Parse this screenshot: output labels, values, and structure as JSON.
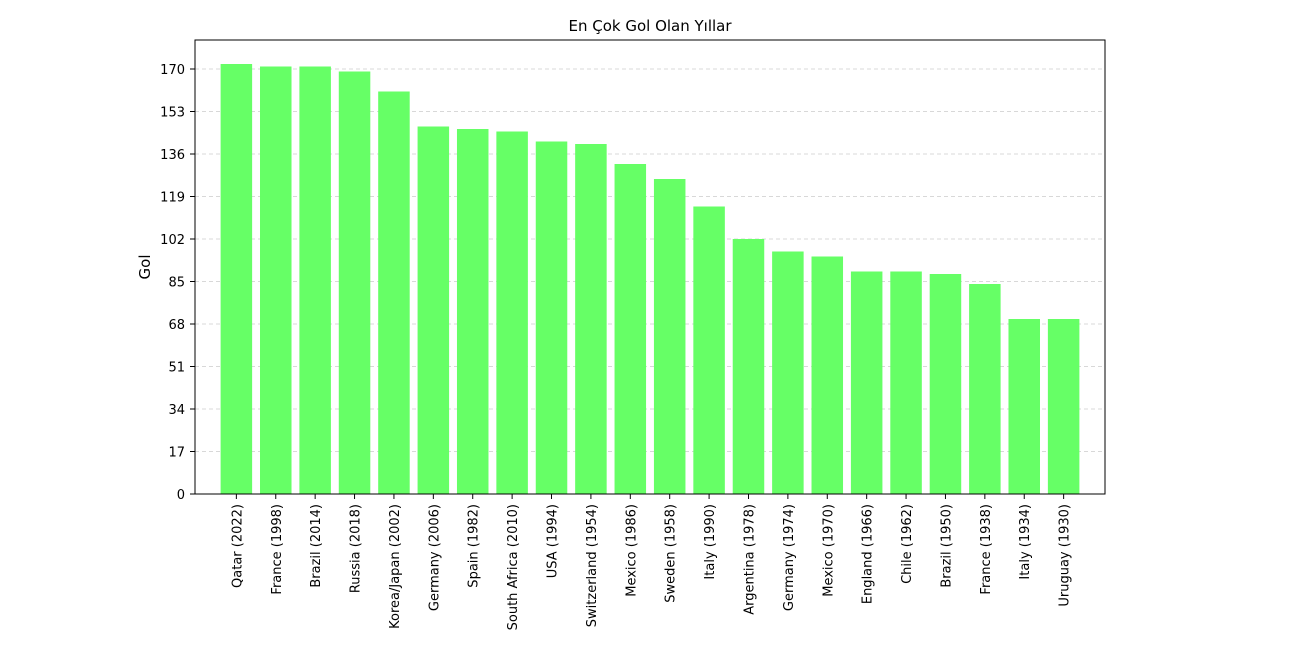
{
  "chart_data": {
    "type": "bar",
    "title": "En Çok Gol Olan Yıllar",
    "xlabel": "",
    "ylabel": "Gol",
    "categories": [
      "Qatar (2022)",
      "France (1998)",
      "Brazil (2014)",
      "Russia (2018)",
      "Korea/Japan (2002)",
      "Germany (2006)",
      "Spain (1982)",
      "South Africa (2010)",
      "USA (1994)",
      "Switzerland (1954)",
      "Mexico (1986)",
      "Sweden (1958)",
      "Italy (1990)",
      "Argentina (1978)",
      "Germany (1974)",
      "Mexico (1970)",
      "England (1966)",
      "Chile (1962)",
      "Brazil (1950)",
      "France (1938)",
      "Italy (1934)",
      "Uruguay (1930)"
    ],
    "values": [
      172,
      171,
      171,
      169,
      161,
      147,
      146,
      145,
      141,
      140,
      132,
      126,
      115,
      102,
      97,
      95,
      89,
      89,
      88,
      84,
      70,
      70
    ],
    "yticks": [
      0,
      17,
      34,
      51,
      68,
      85,
      102,
      119,
      136,
      153,
      170
    ],
    "ylim": [
      0,
      181.6
    ],
    "bar_color": "#66ff66",
    "grid": "y-dashed",
    "legend": "none"
  }
}
